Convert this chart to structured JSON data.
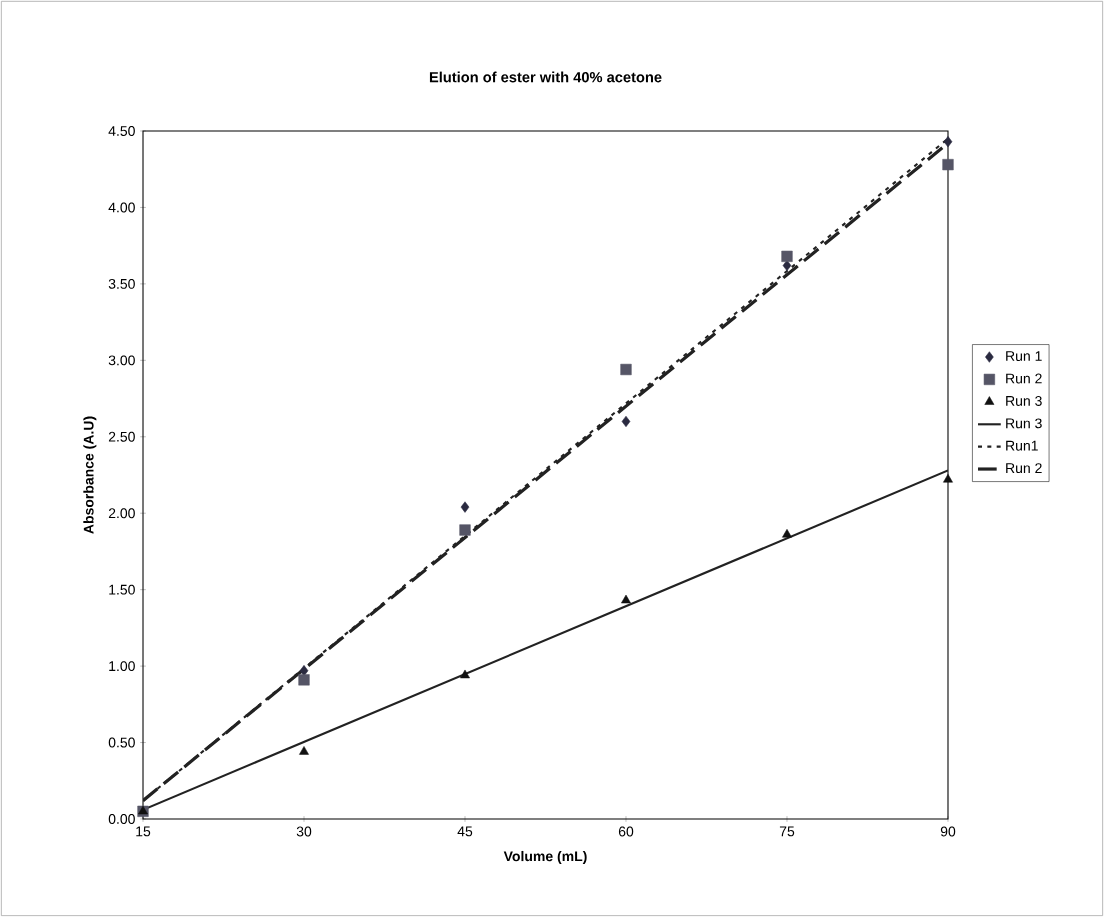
{
  "chart_data": {
    "type": "scatter",
    "title": "Elution of ester with 40% acetone",
    "xlabel": "Volume (mL)",
    "ylabel": "Absorbance (A.U)",
    "x": [
      15,
      30,
      45,
      60,
      75,
      90
    ],
    "xlim": [
      15,
      90
    ],
    "xticks": [
      15,
      30,
      45,
      60,
      75,
      90
    ],
    "ylim": [
      0,
      4.5
    ],
    "yticks": [
      {
        "value": 0,
        "label": "0.00"
      },
      {
        "value": 0.5,
        "label": "0.50"
      },
      {
        "value": 1,
        "label": "1.00"
      },
      {
        "value": 1.5,
        "label": "1.50"
      },
      {
        "value": 2,
        "label": "2.00"
      },
      {
        "value": 2.5,
        "label": "2.50"
      },
      {
        "value": 3,
        "label": "3.00"
      },
      {
        "value": 3.5,
        "label": "3.50"
      },
      {
        "value": 4,
        "label": "4.00"
      },
      {
        "value": 4.5,
        "label": "4.50"
      }
    ],
    "grid": false,
    "legend": "right",
    "series": [
      {
        "name": "Run 1",
        "marker": "diamond",
        "color": "#2a2a40",
        "values": [
          null,
          0.97,
          2.04,
          2.6,
          3.62,
          4.43
        ]
      },
      {
        "name": "Run 2",
        "marker": "square",
        "color": "#555566",
        "values": [
          0.05,
          0.91,
          1.89,
          2.94,
          3.68,
          4.28
        ]
      },
      {
        "name": "Run 3",
        "marker": "triangle",
        "color": "#111111",
        "values": [
          0.05,
          0.44,
          0.94,
          1.43,
          1.86,
          2.22
        ]
      },
      {
        "name": "Run 3",
        "type": "line",
        "marker": "none",
        "line_style": "solid",
        "color": "#222222",
        "values": [
          0.06,
          null,
          null,
          null,
          null,
          2.28
        ]
      },
      {
        "name": "Run1",
        "type": "line",
        "marker": "none",
        "line_style": "dotted",
        "color": "#222222",
        "values": [
          0.12,
          null,
          null,
          null,
          null,
          4.45
        ]
      },
      {
        "name": "Run 2",
        "type": "line",
        "marker": "none",
        "line_style": "dashed",
        "color": "#222222",
        "values": [
          0.12,
          null,
          null,
          null,
          null,
          4.42
        ]
      }
    ]
  }
}
